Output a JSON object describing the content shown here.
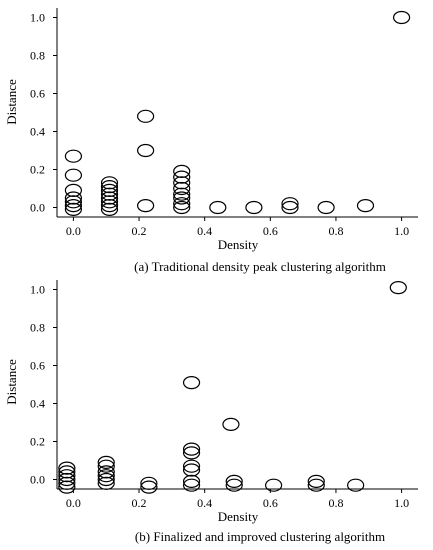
{
  "chart_data": [
    {
      "type": "scatter",
      "caption": "(a) Traditional density peak clustering algorithm",
      "xlabel": "Density",
      "ylabel": "Distance",
      "xlim": [
        -0.05,
        1.05
      ],
      "ylim": [
        -0.05,
        1.05
      ],
      "xticks": [
        "0.0",
        "0.2",
        "0.4",
        "0.6",
        "0.8",
        "1.0"
      ],
      "yticks": [
        "0.0",
        "0.2",
        "0.4",
        "0.6",
        "0.8",
        "1.0"
      ],
      "grid": false,
      "marker": "hollow-ellipse",
      "points": [
        {
          "x": 0.0,
          "y": 0.27
        },
        {
          "x": 0.0,
          "y": 0.17
        },
        {
          "x": 0.0,
          "y": 0.09
        },
        {
          "x": 0.0,
          "y": 0.05
        },
        {
          "x": 0.0,
          "y": 0.03
        },
        {
          "x": 0.0,
          "y": 0.01
        },
        {
          "x": 0.0,
          "y": -0.01
        },
        {
          "x": 0.11,
          "y": 0.13
        },
        {
          "x": 0.11,
          "y": 0.11
        },
        {
          "x": 0.11,
          "y": 0.09
        },
        {
          "x": 0.11,
          "y": 0.07
        },
        {
          "x": 0.11,
          "y": 0.05
        },
        {
          "x": 0.11,
          "y": 0.03
        },
        {
          "x": 0.11,
          "y": 0.01
        },
        {
          "x": 0.11,
          "y": -0.01
        },
        {
          "x": 0.22,
          "y": 0.48
        },
        {
          "x": 0.22,
          "y": 0.3
        },
        {
          "x": 0.22,
          "y": 0.01
        },
        {
          "x": 0.33,
          "y": 0.19
        },
        {
          "x": 0.33,
          "y": 0.16
        },
        {
          "x": 0.33,
          "y": 0.13
        },
        {
          "x": 0.33,
          "y": 0.1
        },
        {
          "x": 0.33,
          "y": 0.07
        },
        {
          "x": 0.33,
          "y": 0.05
        },
        {
          "x": 0.33,
          "y": 0.02
        },
        {
          "x": 0.33,
          "y": 0.0
        },
        {
          "x": 0.44,
          "y": 0.0
        },
        {
          "x": 0.55,
          "y": 0.0
        },
        {
          "x": 0.66,
          "y": 0.02
        },
        {
          "x": 0.66,
          "y": 0.0
        },
        {
          "x": 0.77,
          "y": 0.0
        },
        {
          "x": 0.89,
          "y": 0.01
        },
        {
          "x": 1.0,
          "y": 1.0
        }
      ]
    },
    {
      "type": "scatter",
      "caption": "(b) Finalized and improved clustering algorithm",
      "xlabel": "Density",
      "ylabel": "Distance",
      "xlim": [
        -0.05,
        1.05
      ],
      "ylim": [
        -0.05,
        1.05
      ],
      "xticks": [
        "0.0",
        "0.2",
        "0.4",
        "0.6",
        "0.8",
        "1.0"
      ],
      "yticks": [
        "0.0",
        "0.2",
        "0.4",
        "0.6",
        "0.8",
        "1.0"
      ],
      "grid": false,
      "marker": "hollow-ellipse",
      "points": [
        {
          "x": -0.02,
          "y": 0.06
        },
        {
          "x": -0.02,
          "y": 0.04
        },
        {
          "x": -0.02,
          "y": 0.02
        },
        {
          "x": -0.02,
          "y": 0.0
        },
        {
          "x": -0.02,
          "y": -0.02
        },
        {
          "x": -0.02,
          "y": -0.04
        },
        {
          "x": 0.1,
          "y": 0.09
        },
        {
          "x": 0.1,
          "y": 0.07
        },
        {
          "x": 0.1,
          "y": 0.04
        },
        {
          "x": 0.1,
          "y": 0.02
        },
        {
          "x": 0.1,
          "y": 0.0
        },
        {
          "x": 0.1,
          "y": -0.02
        },
        {
          "x": 0.23,
          "y": -0.02
        },
        {
          "x": 0.23,
          "y": -0.04
        },
        {
          "x": 0.36,
          "y": 0.51
        },
        {
          "x": 0.36,
          "y": 0.16
        },
        {
          "x": 0.36,
          "y": 0.14
        },
        {
          "x": 0.36,
          "y": 0.07
        },
        {
          "x": 0.36,
          "y": 0.05
        },
        {
          "x": 0.36,
          "y": -0.01
        },
        {
          "x": 0.36,
          "y": -0.03
        },
        {
          "x": 0.48,
          "y": 0.29
        },
        {
          "x": 0.49,
          "y": -0.01
        },
        {
          "x": 0.49,
          "y": -0.03
        },
        {
          "x": 0.61,
          "y": -0.03
        },
        {
          "x": 0.74,
          "y": -0.01
        },
        {
          "x": 0.74,
          "y": -0.03
        },
        {
          "x": 0.86,
          "y": -0.03
        },
        {
          "x": 0.99,
          "y": 1.01
        }
      ]
    }
  ]
}
